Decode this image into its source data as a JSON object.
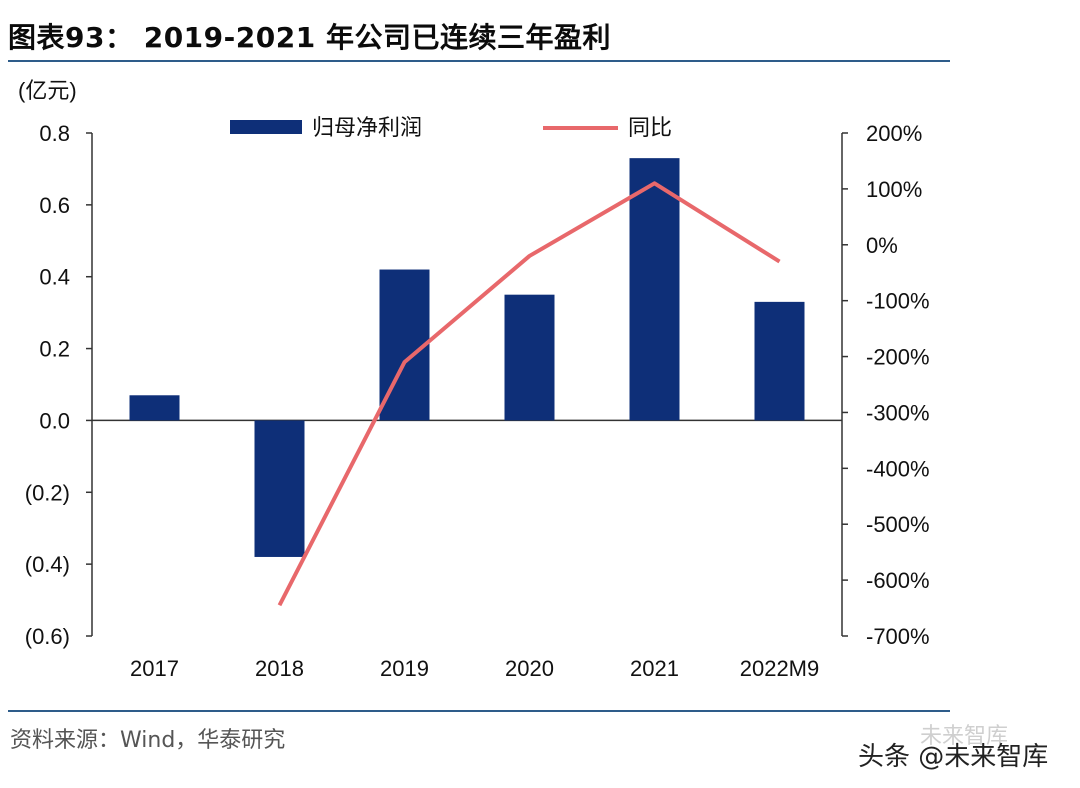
{
  "header": {
    "title": "图表93： 2019-2021 年公司已连续三年盈利"
  },
  "footer": {
    "source": "资料来源：Wind，华泰研究",
    "watermark": "头条 @未来智库",
    "watermark_faint": "未来智库"
  },
  "colors": {
    "bar": "#0e2f78",
    "line": "#e8686b",
    "axis": "#333333",
    "rule": "#2e5c8a"
  },
  "chart_data": {
    "type": "bar",
    "title": "",
    "unit_label": "(亿元)",
    "categories": [
      "2017",
      "2018",
      "2019",
      "2020",
      "2021",
      "2022M9"
    ],
    "series": [
      {
        "name": "归母净利润",
        "type": "bar",
        "axis": "left",
        "values": [
          0.07,
          -0.38,
          0.42,
          0.35,
          0.73,
          0.33
        ]
      },
      {
        "name": "同比",
        "type": "line",
        "axis": "right",
        "points": [
          {
            "category": "2018",
            "value": -645
          },
          {
            "category": "2019",
            "value": -210
          },
          {
            "category": "2020",
            "value": -20
          },
          {
            "category": "2021",
            "value": 110
          },
          {
            "category": "2022M9",
            "value": -30
          }
        ]
      }
    ],
    "left_axis": {
      "ylim": [
        -0.6,
        0.8
      ],
      "ticks": [
        0.8,
        0.6,
        0.4,
        0.2,
        0.0,
        -0.2,
        -0.4,
        -0.6
      ],
      "tick_labels": [
        "0.8",
        "0.6",
        "0.4",
        "0.2",
        "0.0",
        "(0.2)",
        "(0.4)",
        "(0.6)"
      ]
    },
    "right_axis": {
      "ylim": [
        -700,
        200
      ],
      "ticks": [
        200,
        100,
        0,
        -100,
        -200,
        -300,
        -400,
        -500,
        -600,
        -700
      ],
      "tick_labels": [
        "200%",
        "100%",
        "0%",
        "-100%",
        "-200%",
        "-300%",
        "-400%",
        "-500%",
        "-600%",
        "-700%"
      ]
    },
    "legend": {
      "placement": "top",
      "entries": [
        "归母净利润",
        "同比"
      ]
    },
    "grid": false
  }
}
